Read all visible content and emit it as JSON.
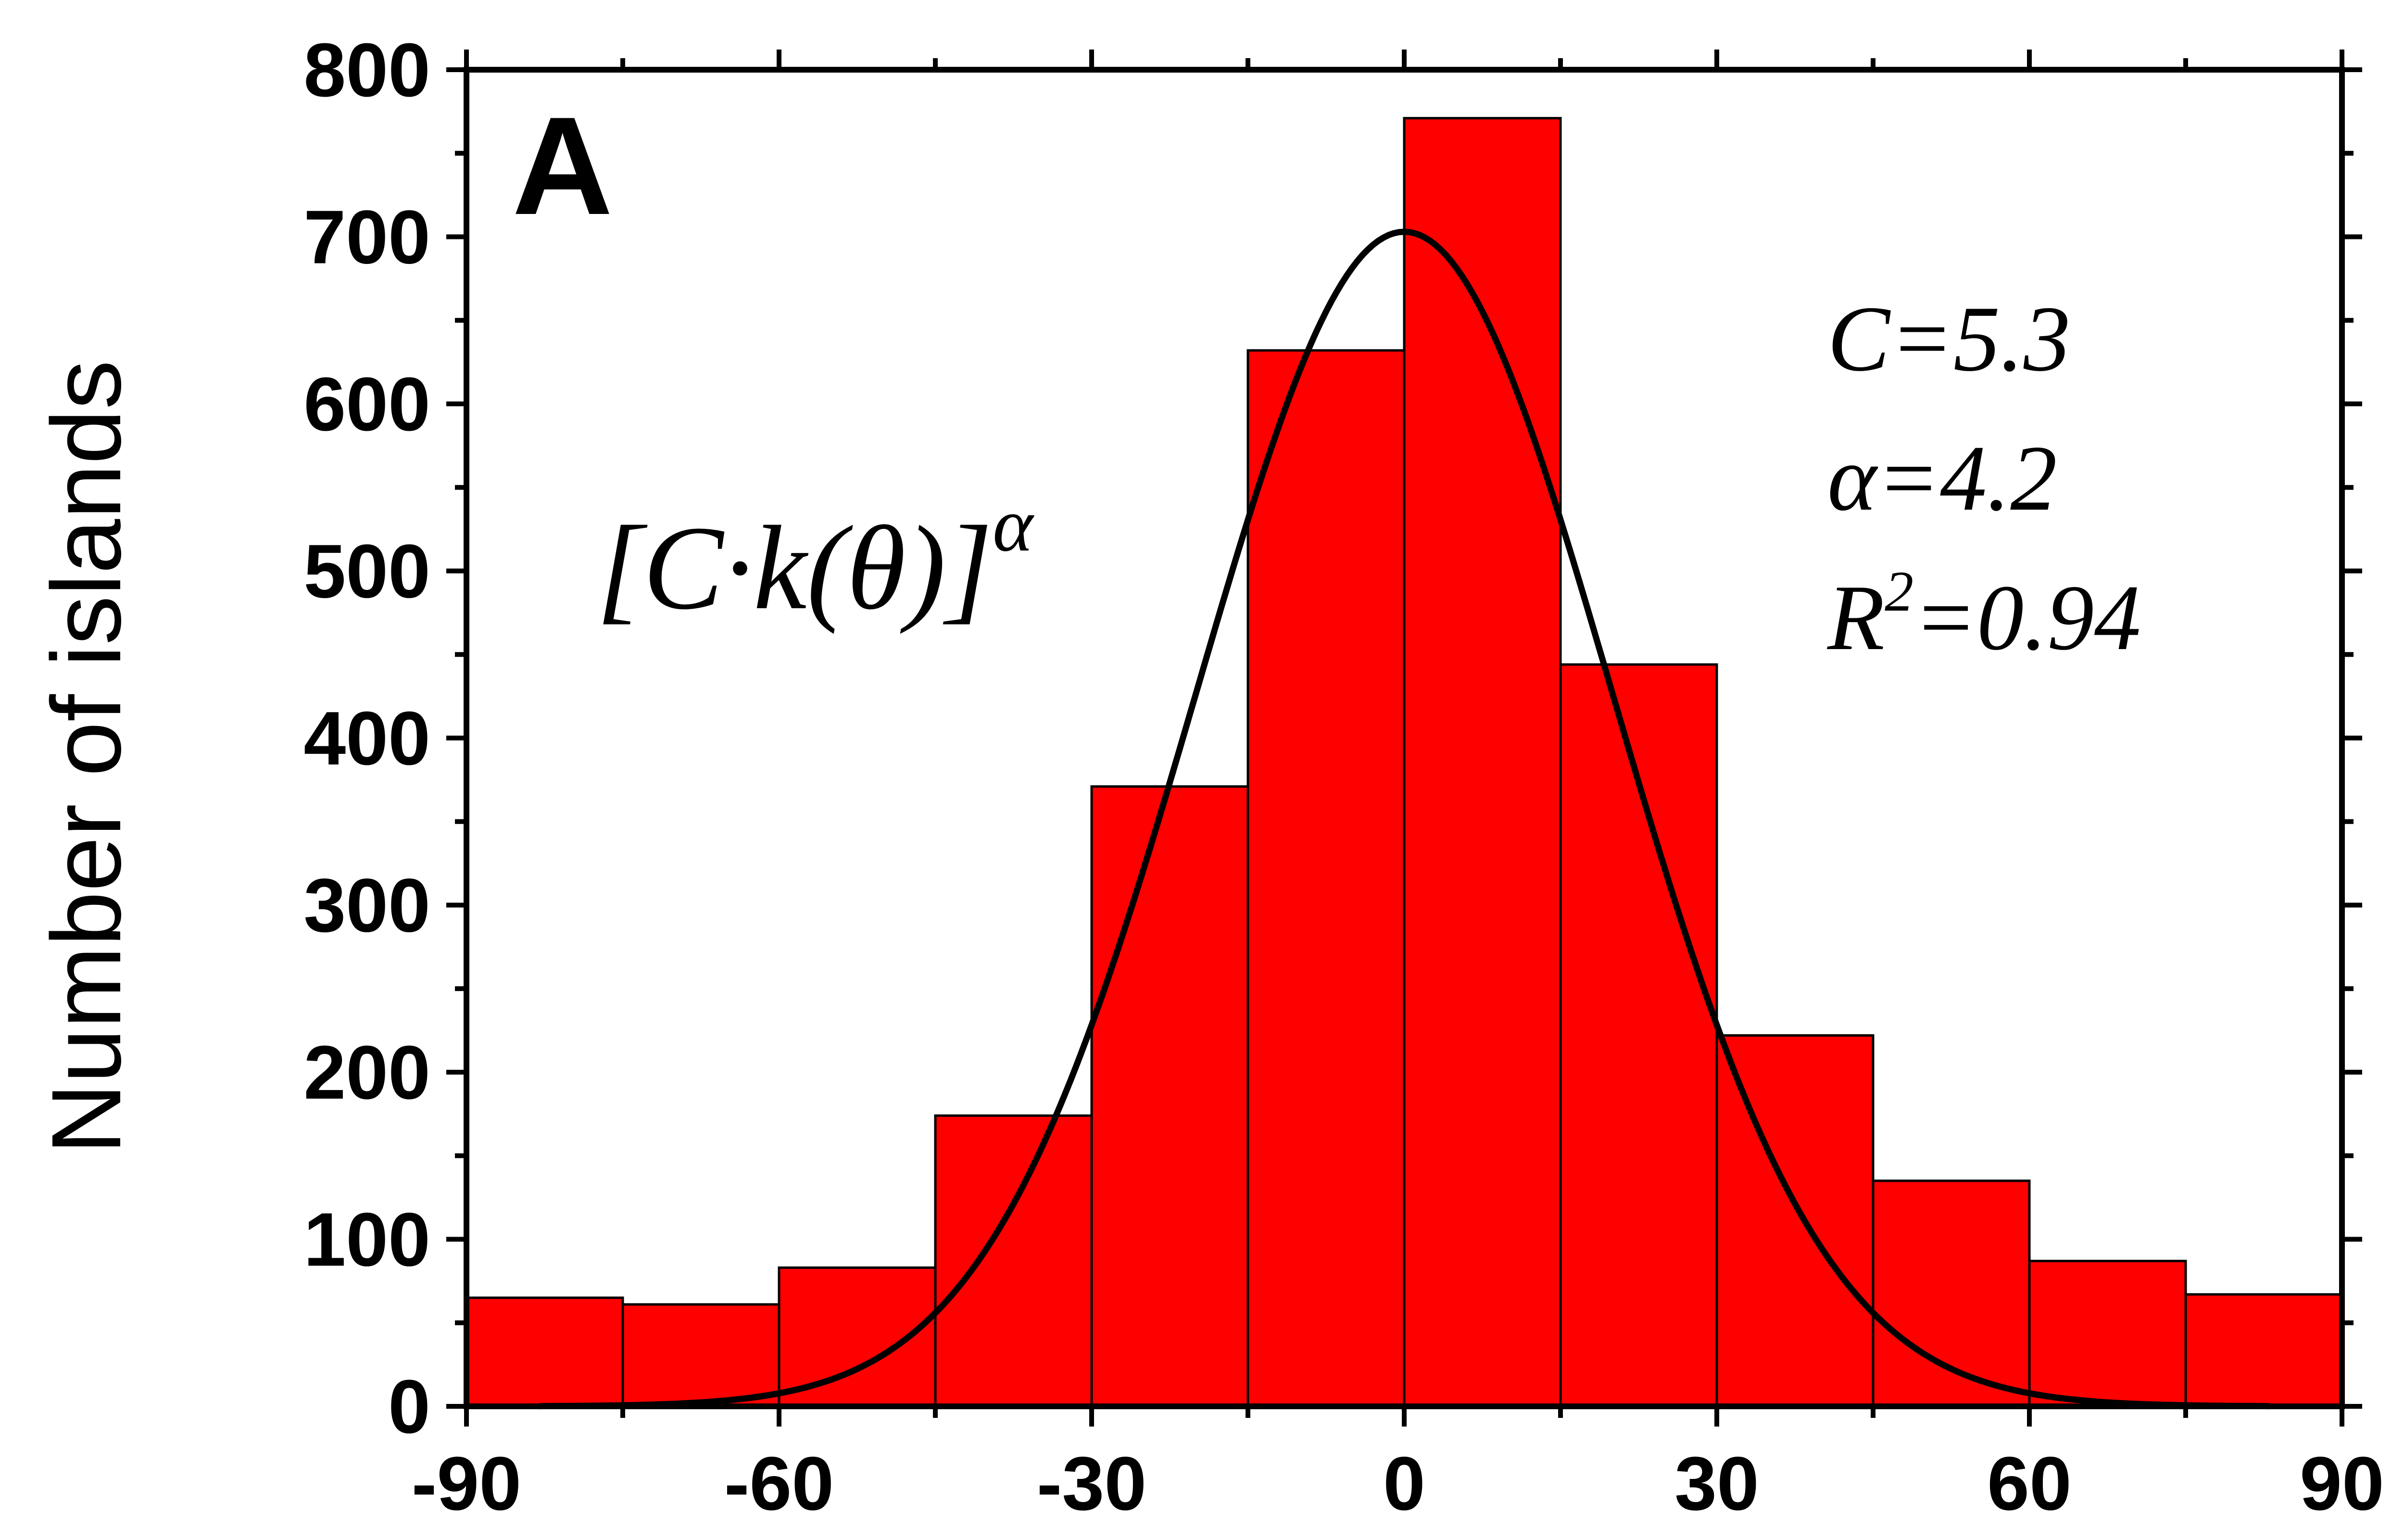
{
  "chart_data": {
    "type": "bar",
    "panel_label": "A",
    "ylabel": "Number of islands",
    "xlabel": "",
    "xlim": [
      -90,
      90
    ],
    "ylim": [
      0,
      800
    ],
    "x_ticks": [
      -90,
      -60,
      -30,
      0,
      30,
      60,
      90
    ],
    "y_ticks": [
      0,
      100,
      200,
      300,
      400,
      500,
      600,
      700,
      800
    ],
    "bin_width": 15,
    "bins": [
      {
        "start": -90,
        "end": -75,
        "value": 65
      },
      {
        "start": -75,
        "end": -60,
        "value": 61
      },
      {
        "start": -60,
        "end": -45,
        "value": 83
      },
      {
        "start": -45,
        "end": -30,
        "value": 174
      },
      {
        "start": -30,
        "end": -15,
        "value": 371
      },
      {
        "start": -15,
        "end": 0,
        "value": 632
      },
      {
        "start": 0,
        "end": 15,
        "value": 771
      },
      {
        "start": 15,
        "end": 30,
        "value": 444
      },
      {
        "start": 30,
        "end": 45,
        "value": 222
      },
      {
        "start": 45,
        "end": 60,
        "value": 135
      },
      {
        "start": 60,
        "end": 75,
        "value": 87
      },
      {
        "start": 75,
        "end": 90,
        "value": 67
      }
    ],
    "bar_color": "#ff0000",
    "fit_curve": {
      "label_main": "[C·k(θ)]",
      "label_sup": "α",
      "peak": 703,
      "center": 0,
      "sigma": 20,
      "x_range": [
        -83,
        83
      ]
    },
    "stats": {
      "c": "C=5.3",
      "alpha": "α=4.2",
      "r2_prefix": "R",
      "r2_sup": "2",
      "r2_suffix": "=0.94"
    },
    "grid": false,
    "legend": "none"
  }
}
